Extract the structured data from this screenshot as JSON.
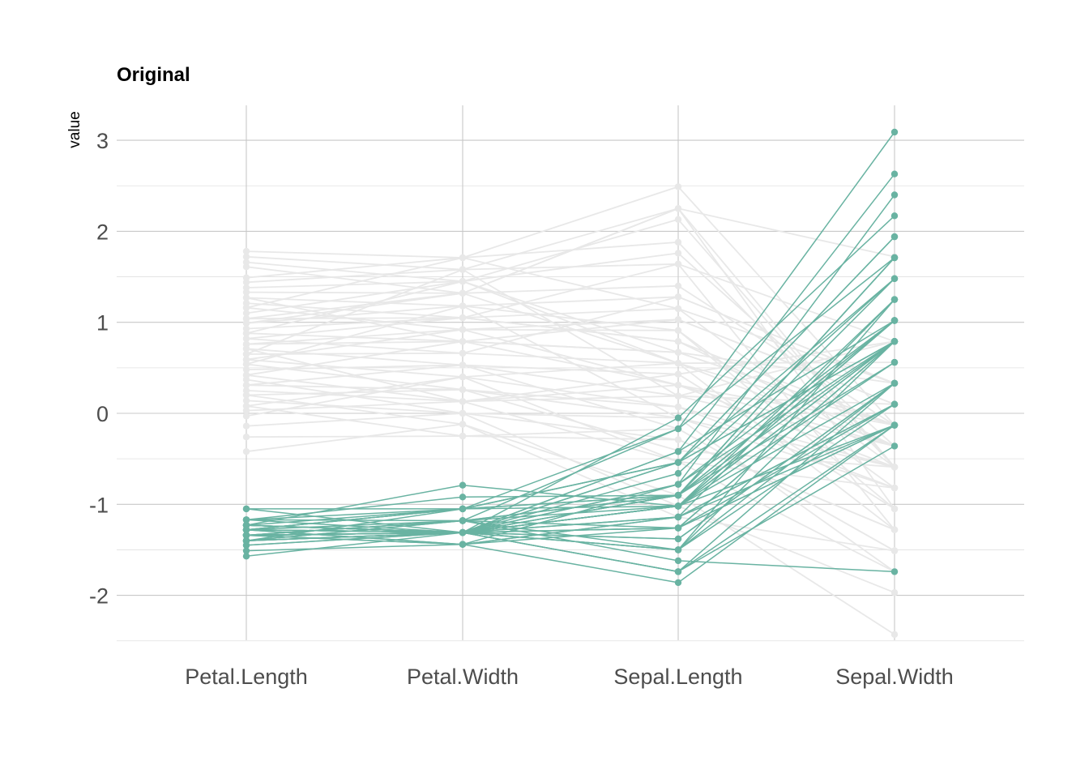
{
  "chart_data": {
    "type": "line",
    "title": "Original",
    "xlabel": "",
    "ylabel": "value",
    "categories": [
      "Petal.Length",
      "Petal.Width",
      "Sepal.Length",
      "Sepal.Width"
    ],
    "ylim": [
      -2.55,
      3.35
    ],
    "yticks": [
      -2,
      -1,
      0,
      1,
      2,
      3
    ],
    "grid": true,
    "legend": "none",
    "colors": {
      "highlight": "#69b3a2",
      "background": "#e8e8e8"
    },
    "series_groups": [
      {
        "group": "background",
        "lines": [
          [
            1.78,
            1.71,
            2.49,
            -0.13
          ],
          [
            1.72,
            1.58,
            2.25,
            1.72
          ],
          [
            1.66,
            1.45,
            2.13,
            -0.59
          ],
          [
            1.61,
            1.32,
            2.25,
            -1.05
          ],
          [
            1.49,
            1.71,
            1.88,
            -0.59
          ],
          [
            1.44,
            1.58,
            1.64,
            0.79
          ],
          [
            1.38,
            1.45,
            1.76,
            -0.36
          ],
          [
            1.33,
            1.32,
            1.4,
            -0.13
          ],
          [
            1.27,
            1.18,
            1.28,
            0.33
          ],
          [
            1.21,
            1.05,
            1.15,
            -0.59
          ],
          [
            1.16,
            0.92,
            1.03,
            0.1
          ],
          [
            1.1,
            1.45,
            0.67,
            -0.13
          ],
          [
            1.04,
            1.32,
            0.55,
            -0.36
          ],
          [
            0.99,
            1.18,
            0.91,
            -0.82
          ],
          [
            0.93,
            1.05,
            0.79,
            -0.13
          ],
          [
            0.88,
            0.79,
            0.67,
            0.33
          ],
          [
            0.82,
            0.66,
            0.55,
            -1.28
          ],
          [
            0.76,
            0.79,
            0.31,
            -0.59
          ],
          [
            0.71,
            0.53,
            0.43,
            -1.05
          ],
          [
            0.65,
            1.58,
            0.19,
            0.1
          ],
          [
            0.59,
            0.4,
            0.07,
            -0.82
          ],
          [
            0.54,
            0.26,
            -0.05,
            -1.74
          ],
          [
            0.48,
            0.53,
            -0.17,
            -1.51
          ],
          [
            0.42,
            0.13,
            0.31,
            -0.36
          ],
          [
            0.37,
            0.0,
            -0.29,
            -1.28
          ],
          [
            0.31,
            0.26,
            -0.41,
            -0.59
          ],
          [
            0.25,
            0.13,
            -0.53,
            -1.74
          ],
          [
            0.2,
            -0.12,
            -0.9,
            -2.43
          ],
          [
            0.14,
            0.0,
            -1.02,
            -1.97
          ],
          [
            0.08,
            -0.25,
            -0.17,
            -1.51
          ],
          [
            0.03,
            0.13,
            0.19,
            -0.36
          ],
          [
            -0.03,
            0.4,
            0.55,
            -0.13
          ],
          [
            -0.14,
            0.0,
            -0.05,
            -0.82
          ],
          [
            -0.26,
            -0.25,
            -0.29,
            -1.28
          ],
          [
            -0.42,
            -0.12,
            -1.14,
            -1.51
          ],
          [
            1.27,
            0.79,
            1.03,
            0.1
          ],
          [
            1.04,
            1.05,
            0.79,
            -0.36
          ],
          [
            0.88,
            1.45,
            0.55,
            0.56
          ],
          [
            0.76,
            0.92,
            0.31,
            -0.13
          ],
          [
            0.65,
            0.66,
            1.28,
            0.33
          ],
          [
            0.54,
            1.18,
            -0.05,
            -0.59
          ],
          [
            0.42,
            0.79,
            0.67,
            -0.13
          ],
          [
            0.31,
            0.53,
            0.19,
            0.79
          ],
          [
            0.2,
            0.26,
            0.07,
            -0.59
          ],
          [
            0.08,
            0.4,
            -0.53,
            -0.82
          ],
          [
            1.16,
            1.71,
            1.15,
            0.33
          ],
          [
            0.99,
            1.32,
            2.25,
            -0.59
          ],
          [
            0.82,
            1.05,
            1.64,
            -1.28
          ],
          [
            0.71,
            0.13,
            0.43,
            0.79
          ],
          [
            0.59,
            0.92,
            0.91,
            -1.05
          ]
        ]
      },
      {
        "group": "highlight",
        "lines": [
          [
            -1.34,
            -1.31,
            -0.9,
            1.02
          ],
          [
            -1.34,
            -1.31,
            -1.14,
            -0.13
          ],
          [
            -1.4,
            -1.31,
            -1.38,
            0.33
          ],
          [
            -1.28,
            -1.31,
            -1.5,
            0.1
          ],
          [
            -1.34,
            -1.31,
            -1.02,
            1.25
          ],
          [
            -1.17,
            -1.05,
            -0.54,
            1.94
          ],
          [
            -1.34,
            -1.18,
            -1.5,
            0.79
          ],
          [
            -1.28,
            -1.31,
            -1.02,
            0.79
          ],
          [
            -1.34,
            -1.31,
            -1.74,
            -0.36
          ],
          [
            -1.28,
            -1.44,
            -1.14,
            0.1
          ],
          [
            -1.28,
            -1.31,
            -0.54,
            1.48
          ],
          [
            -1.23,
            -1.31,
            -1.26,
            0.79
          ],
          [
            -1.34,
            -1.44,
            -1.26,
            -0.13
          ],
          [
            -1.51,
            -1.44,
            -1.86,
            -0.13
          ],
          [
            -1.45,
            -1.31,
            -0.05,
            2.17
          ],
          [
            -1.28,
            -1.05,
            -0.17,
            3.09
          ],
          [
            -1.4,
            -1.05,
            -0.54,
            1.94
          ],
          [
            -1.34,
            -1.18,
            -0.9,
            1.02
          ],
          [
            -1.17,
            -1.18,
            -0.17,
            1.71
          ],
          [
            -1.28,
            -1.18,
            -0.9,
            1.71
          ],
          [
            -1.17,
            -1.31,
            -0.54,
            0.79
          ],
          [
            -1.28,
            -1.05,
            -0.9,
            1.48
          ],
          [
            -1.57,
            -1.31,
            -1.5,
            1.25
          ],
          [
            -1.17,
            -0.92,
            -0.9,
            0.56
          ],
          [
            -1.05,
            -1.31,
            -1.26,
            0.79
          ],
          [
            -1.23,
            -1.31,
            -1.02,
            -0.13
          ],
          [
            -1.23,
            -1.05,
            -1.02,
            0.79
          ],
          [
            -1.28,
            -1.31,
            -0.78,
            1.02
          ],
          [
            -1.34,
            -1.31,
            -0.78,
            0.79
          ],
          [
            -1.23,
            -1.31,
            -1.38,
            0.33
          ],
          [
            -1.23,
            -1.31,
            -1.26,
            0.1
          ],
          [
            -1.28,
            -1.05,
            -0.54,
            0.79
          ],
          [
            -1.28,
            -1.44,
            -0.78,
            2.4
          ],
          [
            -1.34,
            -1.31,
            -0.42,
            2.63
          ],
          [
            -1.28,
            -1.31,
            -1.14,
            0.1
          ],
          [
            -1.45,
            -1.31,
            -1.02,
            0.33
          ],
          [
            -1.4,
            -1.31,
            -0.42,
            1.02
          ],
          [
            -1.34,
            -1.44,
            -1.14,
            1.25
          ],
          [
            -1.4,
            -1.31,
            -1.74,
            -0.13
          ],
          [
            -1.28,
            -1.31,
            -0.9,
            0.79
          ],
          [
            -1.4,
            -1.18,
            -1.02,
            1.02
          ],
          [
            -1.4,
            -1.18,
            -1.62,
            -1.74
          ],
          [
            -1.4,
            -1.31,
            -1.74,
            0.33
          ],
          [
            -1.23,
            -0.79,
            -1.02,
            1.02
          ],
          [
            -1.05,
            -1.05,
            -0.9,
            1.71
          ],
          [
            -1.34,
            -1.18,
            -1.26,
            -0.13
          ],
          [
            -1.23,
            -1.31,
            -0.9,
            1.71
          ],
          [
            -1.34,
            -1.31,
            -1.5,
            0.33
          ],
          [
            -1.28,
            -1.31,
            -0.66,
            1.48
          ],
          [
            -1.34,
            -1.31,
            -1.02,
            0.56
          ]
        ]
      }
    ]
  }
}
